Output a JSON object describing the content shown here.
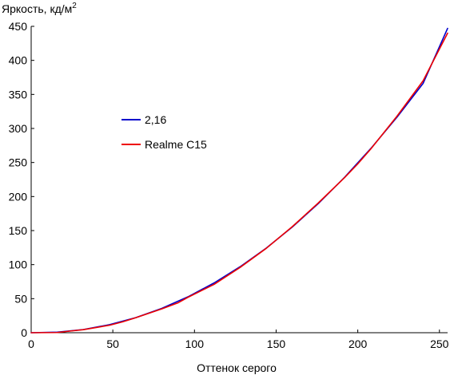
{
  "chart_data": {
    "type": "line",
    "ylabel": "Яркость, кд/м",
    "ylabel_sup": "2",
    "xlabel": "Оттенок серого",
    "xlim": [
      0,
      255
    ],
    "ylim": [
      0,
      450
    ],
    "xticks": [
      0,
      50,
      100,
      150,
      200,
      250
    ],
    "yticks": [
      0,
      50,
      100,
      150,
      200,
      250,
      300,
      350,
      400,
      450
    ],
    "grid": false,
    "legend_position": "center-left",
    "series": [
      {
        "name": "2,16",
        "color": "#0000cc",
        "x": [
          0,
          16,
          32,
          48,
          64,
          80,
          96,
          112,
          128,
          144,
          160,
          176,
          192,
          208,
          224,
          240,
          255
        ],
        "y": [
          0,
          0.8,
          4.7,
          11.8,
          22.1,
          35.8,
          52.7,
          73.1,
          97.0,
          124.4,
          155.4,
          190.1,
          228.5,
          270.6,
          316.5,
          366.2,
          447.0
        ]
      },
      {
        "name": "Realme C15",
        "color": "#ee0000",
        "x": [
          0,
          16,
          24,
          32,
          48,
          56,
          64,
          80,
          90,
          96,
          112,
          128,
          144,
          160,
          176,
          192,
          200,
          208,
          224,
          240,
          255
        ],
        "y": [
          0,
          0.3,
          2.5,
          4.5,
          11,
          16,
          22,
          35,
          44,
          52,
          71,
          96,
          124,
          156,
          191,
          228,
          248,
          270,
          318,
          370,
          440
        ]
      }
    ]
  }
}
